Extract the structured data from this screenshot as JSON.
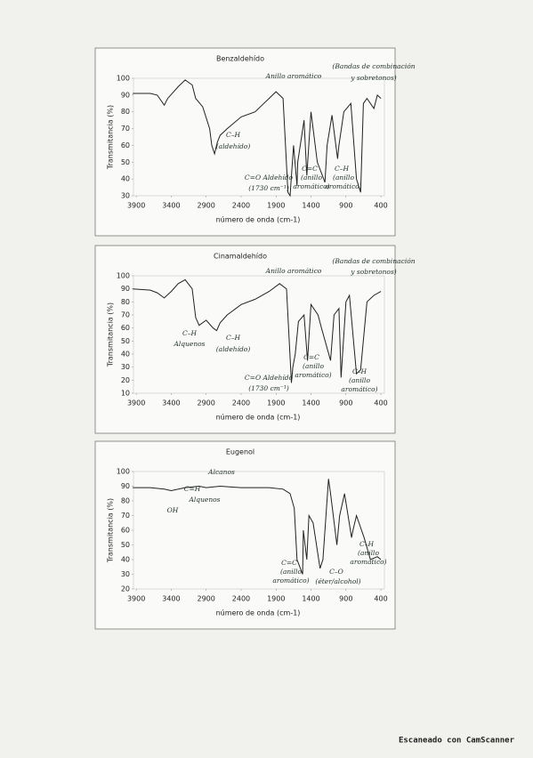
{
  "chart_data": [
    {
      "type": "line",
      "title": "Benzaldehído",
      "xlabel": "número de onda (cm-1)",
      "ylabel": "Transmitancia (%)",
      "color": "#222222",
      "x": [
        3950,
        3700,
        3600,
        3500,
        3450,
        3300,
        3200,
        3100,
        3050,
        2950,
        2850,
        2820,
        2780,
        2740,
        2700,
        2600,
        2400,
        2200,
        2100,
        2000,
        1900,
        1800,
        1730,
        1700,
        1650,
        1600,
        1590,
        1500,
        1460,
        1400,
        1310,
        1200,
        1170,
        1100,
        1020,
        1000,
        930,
        830,
        750,
        690,
        650,
        600,
        500,
        450,
        400
      ],
      "values": [
        91,
        91,
        90,
        84,
        88,
        95,
        99,
        96,
        88,
        83,
        70,
        60,
        55,
        62,
        66,
        70,
        77,
        80,
        84,
        88,
        92,
        88,
        32,
        30,
        60,
        36,
        50,
        75,
        42,
        80,
        50,
        38,
        60,
        78,
        52,
        60,
        80,
        85,
        40,
        32,
        85,
        88,
        82,
        90,
        88
      ],
      "xlim": [
        3940,
        350
      ],
      "ylim": [
        30,
        100
      ],
      "xticks": [
        3900,
        3400,
        2900,
        2400,
        1900,
        1400,
        900,
        400
      ],
      "yticks": [
        30,
        40,
        50,
        60,
        70,
        80,
        90,
        100
      ],
      "annotations": [
        "Anillo aromático",
        "(Bandas de combinación",
        "y sobretonos)",
        "C–H",
        "(aldehído)",
        "C=O Aldehído",
        "(1730 cm⁻¹)",
        "C=C",
        "(anillo",
        "aromático)",
        "C–H",
        "(anillo",
        "aromático)"
      ]
    },
    {
      "type": "line",
      "title": "Cinamaldehído",
      "xlabel": "número de onda (cm-1)",
      "ylabel": "Transmitancia (%)",
      "color": "#222222",
      "x": [
        3950,
        3700,
        3600,
        3500,
        3400,
        3300,
        3200,
        3100,
        3050,
        3000,
        2900,
        2800,
        2750,
        2700,
        2600,
        2400,
        2200,
        2000,
        1850,
        1750,
        1680,
        1660,
        1625,
        1580,
        1500,
        1450,
        1400,
        1300,
        1250,
        1120,
        1070,
        1000,
        970,
        900,
        850,
        750,
        690,
        600,
        500,
        400
      ],
      "values": [
        90,
        89,
        87,
        83,
        88,
        94,
        97,
        90,
        68,
        62,
        66,
        60,
        58,
        64,
        70,
        78,
        82,
        88,
        94,
        90,
        18,
        30,
        40,
        65,
        70,
        35,
        78,
        70,
        60,
        35,
        70,
        75,
        22,
        80,
        85,
        25,
        28,
        80,
        85,
        88
      ],
      "xlim": [
        3940,
        350
      ],
      "ylim": [
        10,
        100
      ],
      "xticks": [
        3900,
        3400,
        2900,
        2400,
        1900,
        1400,
        900,
        400
      ],
      "yticks": [
        10,
        20,
        30,
        40,
        50,
        60,
        70,
        80,
        90,
        100
      ],
      "annotations": [
        "Anillo aromático",
        "(Bandas de combinación",
        "y sobretonos)",
        "C–H",
        "Alquenos",
        "C–H",
        "(aldehído)",
        "C=O Aldehído",
        "(1730 cm⁻¹)",
        "C=C",
        "(anillo",
        "aromático)",
        "C–H",
        "(anillo",
        "aromático)"
      ]
    },
    {
      "type": "line",
      "title": "Eugenol",
      "xlabel": "número de onda (cm-1)",
      "ylabel": "Transmitancia (%)",
      "color": "#222222",
      "x": [
        3950,
        3700,
        3500,
        3400,
        3200,
        3000,
        2900,
        2700,
        2400,
        2000,
        1800,
        1700,
        1640,
        1600,
        1520,
        1510,
        1460,
        1430,
        1370,
        1270,
        1230,
        1200,
        1150,
        1120,
        1030,
        990,
        920,
        820,
        800,
        750,
        640,
        550,
        450,
        400
      ],
      "values": [
        89,
        89,
        88,
        87,
        89,
        90,
        89,
        90,
        89,
        89,
        88,
        85,
        75,
        40,
        30,
        60,
        40,
        70,
        65,
        34,
        40,
        60,
        95,
        85,
        50,
        70,
        85,
        55,
        60,
        70,
        55,
        40,
        42,
        40
      ],
      "xlim": [
        3940,
        350
      ],
      "ylim": [
        20,
        100
      ],
      "xticks": [
        3900,
        3400,
        2900,
        2400,
        1900,
        1400,
        900,
        400
      ],
      "yticks": [
        20,
        30,
        40,
        50,
        60,
        70,
        80,
        90,
        100
      ],
      "annotations": [
        "Alcanos",
        "C=H",
        "Alquenos",
        "OH",
        "C=C",
        "(anillo",
        "aromático)",
        "C–O",
        "(éter/alcohol)",
        "C–H",
        "(anillo",
        "aromático)"
      ]
    }
  ],
  "footer": "Escaneado con CamScanner"
}
